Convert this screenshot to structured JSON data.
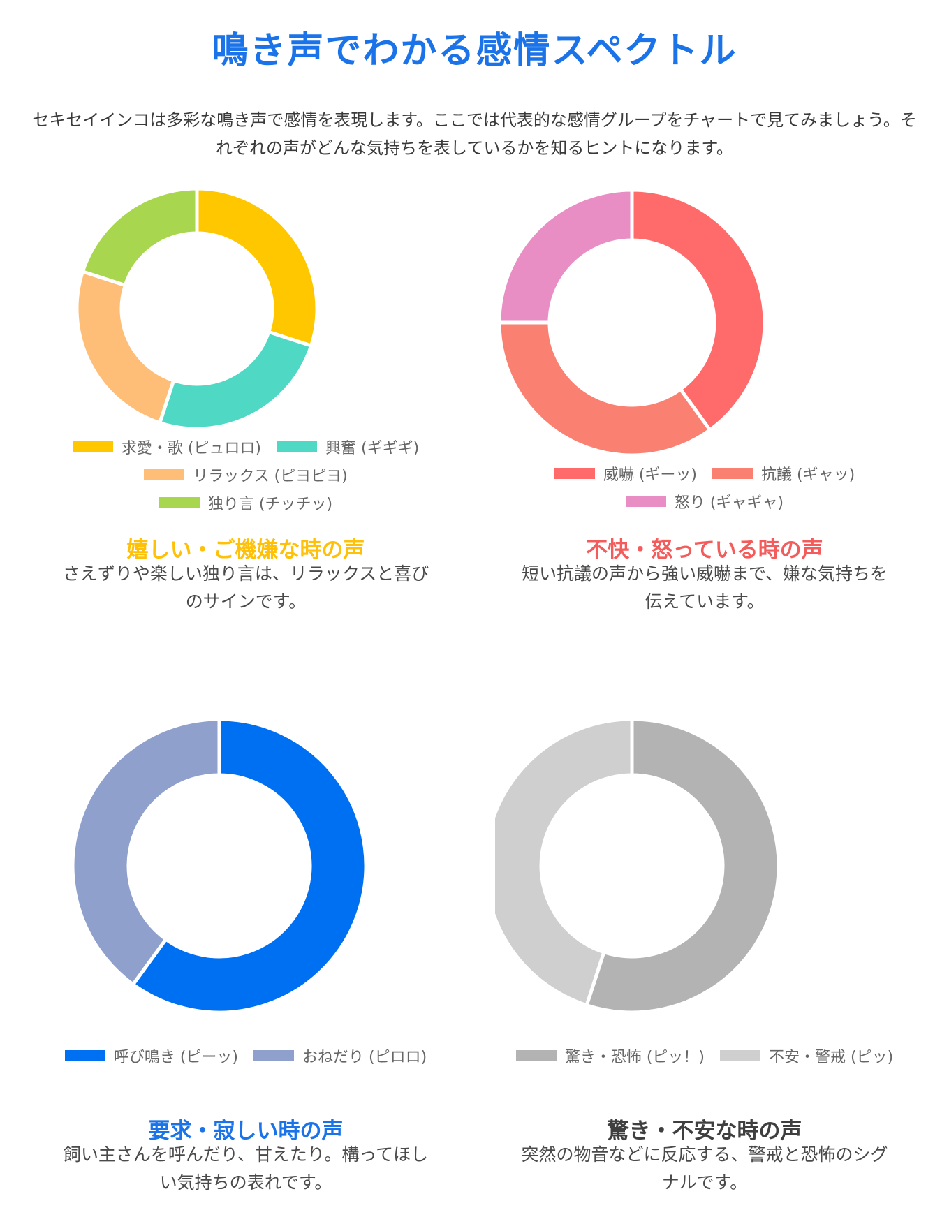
{
  "page": {
    "title": "鳴き声でわかる感情スペクトル",
    "intro": "セキセイインコは多彩な鳴き声で感情を表現します。ここでは代表的な感情グループをチャートで見てみましょう。それぞれの声がどんな気持ちを表しているかを知るヒントになります。"
  },
  "chart_data": [
    {
      "type": "pie",
      "title": "",
      "categories": [
        "求愛・歌 (ピュロロ)",
        "興奮 (ギギギ)",
        "リラックス (ピヨピヨ)",
        "独り言 (チッチッ)"
      ],
      "values": [
        30,
        25,
        25,
        20
      ],
      "colors": [
        "#FFC700",
        "#4FD8C4",
        "#FFBE78",
        "#A8D74F"
      ],
      "legend_rows": [
        [
          0,
          1
        ],
        [
          2
        ],
        [
          3
        ]
      ],
      "legend_position": "bottom",
      "caption_title": "嬉しい・ご機嫌な時の声",
      "caption_text": "さえずりや楽しい独り言は、リラックスと喜びのサインです。",
      "caption_color": "#FFC107"
    },
    {
      "type": "pie",
      "title": "",
      "categories": [
        "威嚇 (ギーッ)",
        "抗議 (ギャッ)",
        "怒り (ギャギャ)"
      ],
      "values": [
        40,
        35,
        25
      ],
      "colors": [
        "#FF6B6B",
        "#FA8072",
        "#E88EC4"
      ],
      "legend_rows": [
        [
          0,
          1
        ],
        [
          2
        ]
      ],
      "legend_position": "bottom",
      "caption_title": "不快・怒っている時の声",
      "caption_text": "短い抗議の声から強い威嚇まで、嫌な気持ちを伝えています。",
      "caption_color": "#F45B5B"
    },
    {
      "type": "pie",
      "title": "",
      "categories": [
        "呼び鳴き (ピーッ)",
        "おねだり (ピロロ)"
      ],
      "values": [
        60,
        40
      ],
      "colors": [
        "#0070F3",
        "#8FA0CC"
      ],
      "legend_rows": [
        [
          0,
          1
        ]
      ],
      "legend_position": "bottom",
      "caption_title": "要求・寂しい時の声",
      "caption_text": "飼い主さんを呼んだり、甘えたり。構ってほしい気持ちの表れです。",
      "caption_color": "#1A73E8"
    },
    {
      "type": "pie",
      "title": "",
      "categories": [
        "驚き・恐怖 (ピッ！)",
        "不安・警戒 (ピッ)"
      ],
      "values": [
        55,
        45
      ],
      "colors": [
        "#B3B3B3",
        "#CFCFCF"
      ],
      "legend_rows": [
        [
          0,
          1
        ]
      ],
      "legend_position": "bottom",
      "caption_title": "驚き・不安な時の声",
      "caption_text": "突然の物音などに反応する、警戒と恐怖のシグナルです。",
      "caption_color": "#3F3F3F"
    }
  ]
}
